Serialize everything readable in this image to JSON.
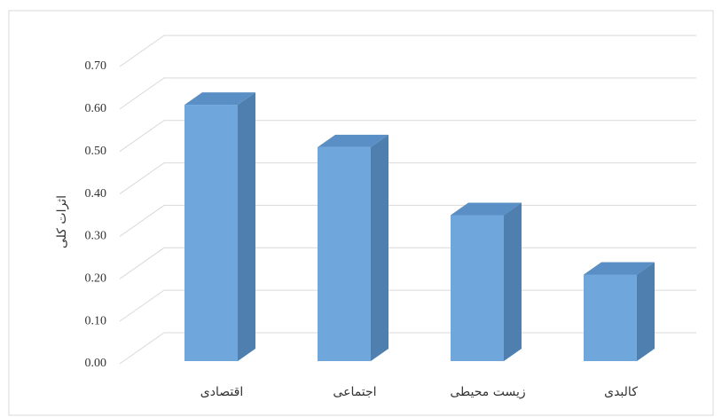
{
  "chart_data": {
    "type": "bar3d",
    "y_label": "اثرات کلی",
    "categories": [
      "اقتصادی",
      "اجتماعی",
      "زیست محیطی",
      "کالبدی"
    ],
    "values": [
      0.61,
      0.51,
      0.35,
      0.21
    ],
    "color": "#6fa6dc",
    "ylim": [
      0,
      0.7
    ],
    "yticks": [
      {
        "value": 0,
        "label": "0.00"
      },
      {
        "value": 0.1,
        "label": "0.10"
      },
      {
        "value": 0.2,
        "label": "0.20"
      },
      {
        "value": 0.3,
        "label": "0.30"
      },
      {
        "value": 0.4,
        "label": "0.40"
      },
      {
        "value": 0.5,
        "label": "0.50"
      },
      {
        "value": 0.6,
        "label": "0.60"
      },
      {
        "value": 0.7,
        "label": "0.70"
      }
    ],
    "grid": true
  }
}
